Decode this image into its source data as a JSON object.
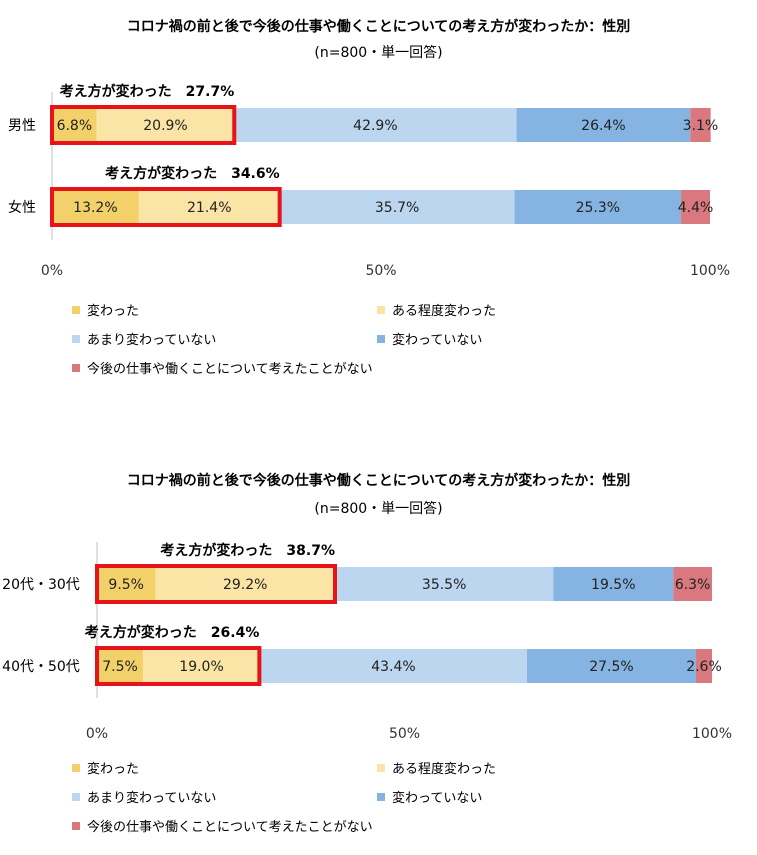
{
  "chart_data": [
    {
      "type": "bar",
      "orientation": "horizontal",
      "stacked": true,
      "title": "コロナ禍の前と後で今後の仕事や働くことについての考え方が変わったか：性別",
      "subtitle": "(n=800・単一回答)",
      "categories": [
        "男性",
        "女性"
      ],
      "series": [
        {
          "name": "変わった",
          "values": [
            6.8,
            13.2
          ]
        },
        {
          "name": "ある程度変わった",
          "values": [
            20.9,
            21.4
          ]
        },
        {
          "name": "あまり変わっていない",
          "values": [
            42.9,
            35.7
          ]
        },
        {
          "name": "変わっていない",
          "values": [
            26.4,
            25.3
          ]
        },
        {
          "name": "今後の仕事や働くことについて考えたことがない",
          "values": [
            3.1,
            4.4
          ]
        }
      ],
      "value_labels": [
        [
          "6.8%",
          "20.9%",
          "42.9%",
          "26.4%",
          "3.1%"
        ],
        [
          "13.2%",
          "21.4%",
          "35.7%",
          "25.3%",
          "4.4%"
        ]
      ],
      "annotations": [
        "考え方が変わった　27.7%",
        "考え方が変わった　34.6%"
      ],
      "highlight_totals": [
        27.7,
        34.6
      ],
      "xlim": [
        0,
        100
      ],
      "x_ticks": [
        "0%",
        "50%",
        "100%"
      ],
      "grid": false,
      "legend_position": "bottom"
    },
    {
      "type": "bar",
      "orientation": "horizontal",
      "stacked": true,
      "title": "コロナ禍の前と後で今後の仕事や働くことについての考え方が変わったか：性別",
      "subtitle": "(n=800・単一回答)",
      "categories": [
        "20代・30代",
        "40代・50代"
      ],
      "series": [
        {
          "name": "変わった",
          "values": [
            9.5,
            7.5
          ]
        },
        {
          "name": "ある程度変わった",
          "values": [
            29.2,
            19.0
          ]
        },
        {
          "name": "あまり変わっていない",
          "values": [
            35.5,
            43.4
          ]
        },
        {
          "name": "変わっていない",
          "values": [
            19.5,
            27.5
          ]
        },
        {
          "name": "今後の仕事や働くことについて考えたことがない",
          "values": [
            6.3,
            2.6
          ]
        }
      ],
      "value_labels": [
        [
          "9.5%",
          "29.2%",
          "35.5%",
          "19.5%",
          "6.3%"
        ],
        [
          "7.5%",
          "19.0%",
          "43.4%",
          "27.5%",
          "2.6%"
        ]
      ],
      "annotations": [
        "考え方が変わった　38.7%",
        "考え方が変わった　26.4%"
      ],
      "highlight_totals": [
        38.7,
        26.4
      ],
      "xlim": [
        0,
        100
      ],
      "x_ticks": [
        "0%",
        "50%",
        "100%"
      ],
      "grid": false,
      "legend_position": "bottom"
    }
  ],
  "colors": {
    "series": [
      "#f2d16b",
      "#fae5a6",
      "#bcd6ef",
      "#86b4e2",
      "#d9787f"
    ],
    "highlight_border": "#e8121a",
    "axis": "#bfbfbf"
  }
}
